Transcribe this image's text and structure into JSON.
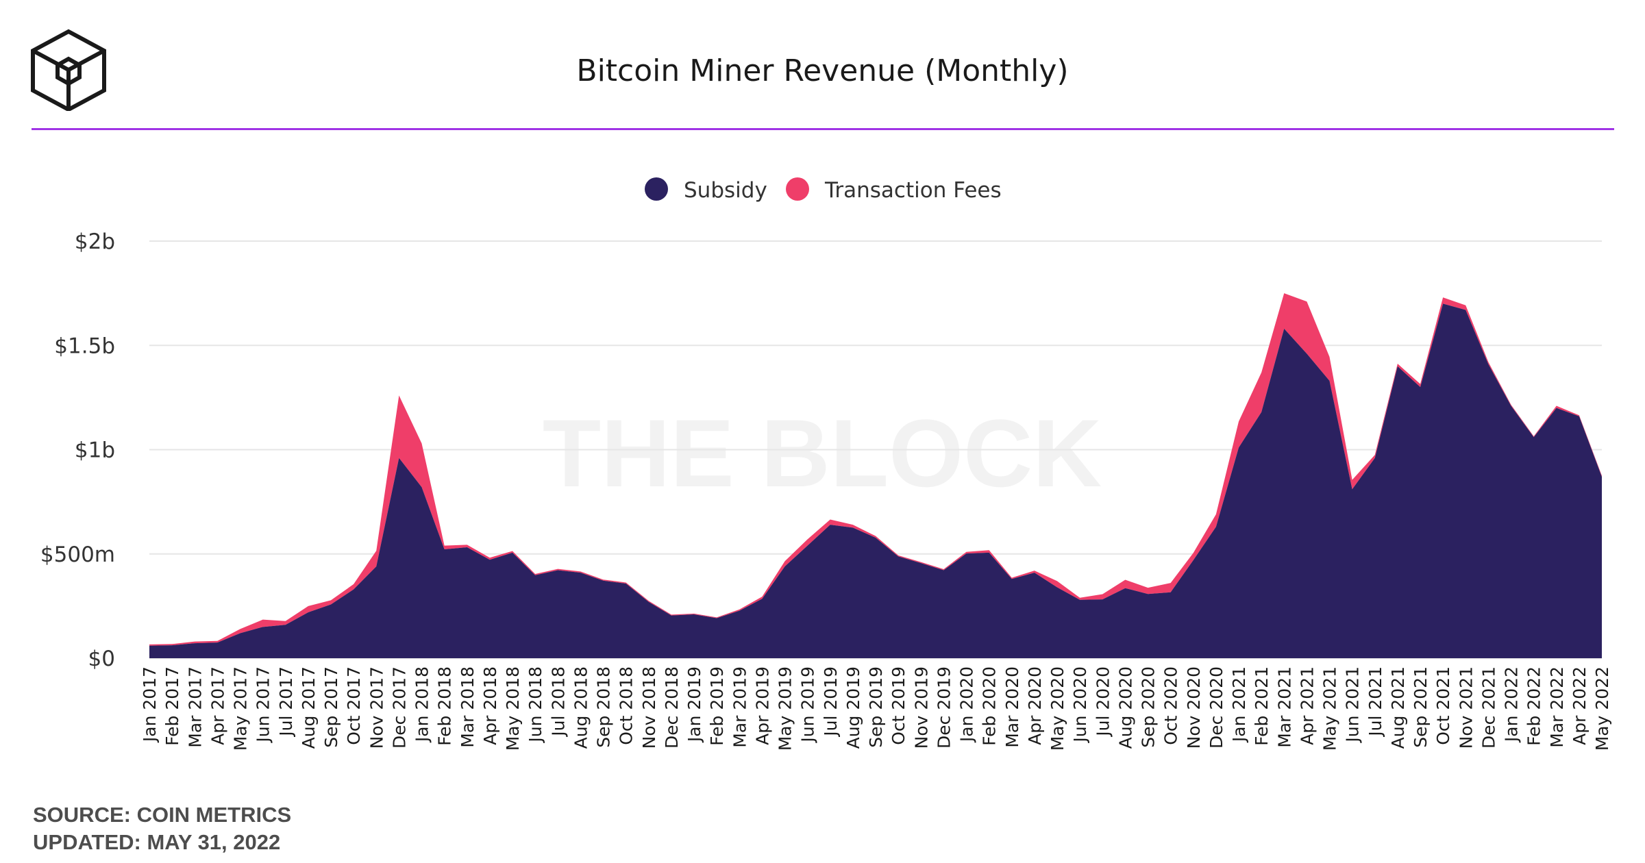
{
  "header": {
    "title": "Bitcoin Miner Revenue (Monthly)",
    "logo": "the-block-cube-logo"
  },
  "watermark": "THE BLOCK",
  "footer": {
    "source": "SOURCE: COIN METRICS",
    "updated": "UPDATED: MAY 31, 2022"
  },
  "colors": {
    "subsidy": "#2b2160",
    "fees": "#ef3e69",
    "rule": "#a034e6",
    "grid": "#e6e6e6"
  },
  "chart_data": {
    "type": "area",
    "stacked": true,
    "title": "Bitcoin Miner Revenue (Monthly)",
    "legend_position": "top-center",
    "grid": true,
    "ylim": [
      0,
      2000000000
    ],
    "y_ticks": [
      {
        "value": 0,
        "label": "$0"
      },
      {
        "value": 500000000,
        "label": "$500m"
      },
      {
        "value": 1000000000,
        "label": "$1b"
      },
      {
        "value": 1500000000,
        "label": "$1.5b"
      },
      {
        "value": 2000000000,
        "label": "$2b"
      }
    ],
    "categories": [
      "Jan 2017",
      "Feb 2017",
      "Mar 2017",
      "Apr 2017",
      "May 2017",
      "Jun 2017",
      "Jul 2017",
      "Aug 2017",
      "Sep 2017",
      "Oct 2017",
      "Nov 2017",
      "Dec 2017",
      "Jan 2018",
      "Feb 2018",
      "Mar 2018",
      "Apr 2018",
      "May 2018",
      "Jun 2018",
      "Jul 2018",
      "Aug 2018",
      "Sep 2018",
      "Oct 2018",
      "Nov 2018",
      "Dec 2018",
      "Jan 2019",
      "Feb 2019",
      "Mar 2019",
      "Apr 2019",
      "May 2019",
      "Jun 2019",
      "Jul 2019",
      "Aug 2019",
      "Sep 2019",
      "Oct 2019",
      "Nov 2019",
      "Dec 2019",
      "Jan 2020",
      "Feb 2020",
      "Mar 2020",
      "Apr 2020",
      "May 2020",
      "Jun 2020",
      "Jul 2020",
      "Aug 2020",
      "Sep 2020",
      "Oct 2020",
      "Nov 2020",
      "Dec 2020",
      "Jan 2021",
      "Feb 2021",
      "Mar 2021",
      "Apr 2021",
      "May 2021",
      "Jun 2021",
      "Jul 2021",
      "Aug 2021",
      "Sep 2021",
      "Oct 2021",
      "Nov 2021",
      "Dec 2021",
      "Jan 2022",
      "Feb 2022",
      "Mar 2022",
      "Apr 2022",
      "May 2022"
    ],
    "series": [
      {
        "name": "Subsidy",
        "values": [
          60000000,
          62000000,
          72000000,
          75000000,
          120000000,
          150000000,
          160000000,
          220000000,
          258000000,
          330000000,
          440000000,
          960000000,
          820000000,
          522000000,
          532000000,
          472000000,
          506000000,
          398000000,
          422000000,
          410000000,
          372000000,
          358000000,
          270000000,
          205000000,
          210000000,
          192000000,
          228000000,
          285000000,
          440000000,
          540000000,
          640000000,
          626000000,
          578000000,
          488000000,
          456000000,
          422000000,
          502000000,
          506000000,
          380000000,
          410000000,
          340000000,
          280000000,
          282000000,
          336000000,
          308000000,
          316000000,
          470000000,
          630000000,
          1010000000,
          1180000000,
          1580000000,
          1460000000,
          1330000000,
          810000000,
          960000000,
          1400000000,
          1300000000,
          1700000000,
          1670000000,
          1410000000,
          1210000000,
          1060000000,
          1200000000,
          1160000000,
          870000000
        ]
      },
      {
        "name": "Transaction Fees",
        "values": [
          6000000,
          6000000,
          8000000,
          8000000,
          20000000,
          35000000,
          18000000,
          30000000,
          20000000,
          25000000,
          75000000,
          300000000,
          210000000,
          18000000,
          12000000,
          10000000,
          8000000,
          6000000,
          6000000,
          6000000,
          5000000,
          5000000,
          5000000,
          4000000,
          4000000,
          4000000,
          6000000,
          10000000,
          25000000,
          30000000,
          25000000,
          14000000,
          8000000,
          5000000,
          5000000,
          5000000,
          8000000,
          12000000,
          6000000,
          10000000,
          30000000,
          10000000,
          25000000,
          40000000,
          30000000,
          45000000,
          35000000,
          60000000,
          125000000,
          190000000,
          170000000,
          250000000,
          115000000,
          45000000,
          15000000,
          12000000,
          15000000,
          30000000,
          22000000,
          10000000,
          5000000,
          4000000,
          10000000,
          5000000,
          5000000
        ]
      }
    ]
  }
}
